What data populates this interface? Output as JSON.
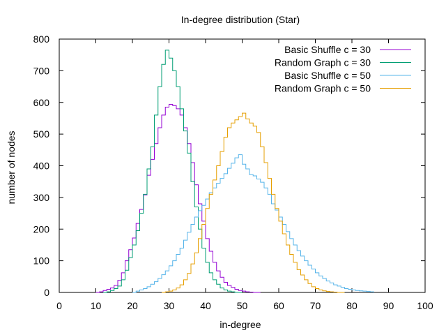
{
  "chart_data": {
    "type": "line",
    "title": "In-degree distribution (Star)",
    "xlabel": "in-degree",
    "ylabel": "number of nodes",
    "xlim": [
      0,
      100
    ],
    "ylim": [
      0,
      800
    ],
    "xticks": [
      "0",
      "10",
      "20",
      "30",
      "40",
      "50",
      "60",
      "70",
      "80",
      "90",
      "100"
    ],
    "yticks": [
      "0",
      "100",
      "200",
      "300",
      "400",
      "500",
      "600",
      "700",
      "800"
    ],
    "grid": false,
    "legend_position": "top-right",
    "step": true,
    "series": [
      {
        "name": "Basic Shuffle c = 30",
        "color": "#9400d3",
        "points": [
          [
            10,
            0
          ],
          [
            11,
            2
          ],
          [
            12,
            6
          ],
          [
            13,
            10
          ],
          [
            14,
            14
          ],
          [
            15,
            22
          ],
          [
            16,
            38
          ],
          [
            17,
            62
          ],
          [
            18,
            100
          ],
          [
            19,
            135
          ],
          [
            20,
            172
          ],
          [
            21,
            218
          ],
          [
            22,
            262
          ],
          [
            23,
            308
          ],
          [
            24,
            370
          ],
          [
            25,
            420
          ],
          [
            26,
            470
          ],
          [
            27,
            520
          ],
          [
            28,
            560
          ],
          [
            29,
            585
          ],
          [
            30,
            594
          ],
          [
            31,
            590
          ],
          [
            32,
            580
          ],
          [
            33,
            560
          ],
          [
            34,
            520
          ],
          [
            35,
            470
          ],
          [
            36,
            410
          ],
          [
            37,
            340
          ],
          [
            38,
            280
          ],
          [
            39,
            225
          ],
          [
            40,
            170
          ],
          [
            41,
            130
          ],
          [
            42,
            95
          ],
          [
            43,
            68
          ],
          [
            44,
            48
          ],
          [
            45,
            32
          ],
          [
            46,
            22
          ],
          [
            47,
            16
          ],
          [
            48,
            10
          ],
          [
            49,
            6
          ],
          [
            50,
            4
          ],
          [
            51,
            2
          ],
          [
            52,
            1
          ],
          [
            53,
            0
          ],
          [
            55,
            0
          ]
        ]
      },
      {
        "name": "Random Graph c = 30",
        "color": "#009e73",
        "points": [
          [
            12,
            0
          ],
          [
            13,
            2
          ],
          [
            14,
            6
          ],
          [
            15,
            12
          ],
          [
            16,
            20
          ],
          [
            17,
            40
          ],
          [
            18,
            70
          ],
          [
            19,
            110
          ],
          [
            20,
            150
          ],
          [
            21,
            195
          ],
          [
            22,
            250
          ],
          [
            23,
            310
          ],
          [
            24,
            390
          ],
          [
            25,
            460
          ],
          [
            26,
            560
          ],
          [
            27,
            650
          ],
          [
            28,
            720
          ],
          [
            29,
            765
          ],
          [
            30,
            740
          ],
          [
            31,
            700
          ],
          [
            32,
            650
          ],
          [
            33,
            580
          ],
          [
            34,
            510
          ],
          [
            35,
            440
          ],
          [
            36,
            350
          ],
          [
            37,
            270
          ],
          [
            38,
            200
          ],
          [
            39,
            140
          ],
          [
            40,
            95
          ],
          [
            41,
            62
          ],
          [
            42,
            40
          ],
          [
            43,
            26
          ],
          [
            44,
            14
          ],
          [
            45,
            8
          ],
          [
            46,
            4
          ],
          [
            47,
            2
          ],
          [
            48,
            0
          ],
          [
            50,
            0
          ]
        ]
      },
      {
        "name": "Basic Shuffle c = 50",
        "color": "#56b4e9",
        "points": [
          [
            20,
            0
          ],
          [
            21,
            4
          ],
          [
            22,
            8
          ],
          [
            23,
            12
          ],
          [
            24,
            18
          ],
          [
            25,
            26
          ],
          [
            26,
            34
          ],
          [
            27,
            44
          ],
          [
            28,
            56
          ],
          [
            29,
            68
          ],
          [
            30,
            84
          ],
          [
            31,
            100
          ],
          [
            32,
            120
          ],
          [
            33,
            140
          ],
          [
            34,
            165
          ],
          [
            35,
            190
          ],
          [
            36,
            215
          ],
          [
            37,
            238
          ],
          [
            38,
            258
          ],
          [
            39,
            275
          ],
          [
            40,
            295
          ],
          [
            41,
            315
          ],
          [
            42,
            330
          ],
          [
            43,
            345
          ],
          [
            44,
            360
          ],
          [
            45,
            375
          ],
          [
            46,
            392
          ],
          [
            47,
            408
          ],
          [
            48,
            425
          ],
          [
            49,
            435
          ],
          [
            50,
            405
          ],
          [
            51,
            390
          ],
          [
            52,
            372
          ],
          [
            53,
            368
          ],
          [
            54,
            358
          ],
          [
            55,
            348
          ],
          [
            56,
            330
          ],
          [
            57,
            310
          ],
          [
            58,
            280
          ],
          [
            59,
            260
          ],
          [
            60,
            238
          ],
          [
            61,
            215
          ],
          [
            62,
            192
          ],
          [
            63,
            170
          ],
          [
            64,
            150
          ],
          [
            65,
            132
          ],
          [
            66,
            115
          ],
          [
            67,
            100
          ],
          [
            68,
            86
          ],
          [
            69,
            74
          ],
          [
            70,
            62
          ],
          [
            71,
            52
          ],
          [
            72,
            44
          ],
          [
            73,
            36
          ],
          [
            74,
            30
          ],
          [
            75,
            24
          ],
          [
            76,
            20
          ],
          [
            77,
            16
          ],
          [
            78,
            12
          ],
          [
            79,
            10
          ],
          [
            80,
            8
          ],
          [
            81,
            6
          ],
          [
            82,
            5
          ],
          [
            83,
            4
          ],
          [
            84,
            3
          ],
          [
            85,
            2
          ],
          [
            86,
            0
          ]
        ]
      },
      {
        "name": "Random Graph c = 50",
        "color": "#e69f00",
        "points": [
          [
            28,
            0
          ],
          [
            29,
            2
          ],
          [
            30,
            4
          ],
          [
            31,
            8
          ],
          [
            32,
            14
          ],
          [
            33,
            24
          ],
          [
            34,
            40
          ],
          [
            35,
            60
          ],
          [
            36,
            90
          ],
          [
            37,
            125
          ],
          [
            38,
            170
          ],
          [
            39,
            215
          ],
          [
            40,
            265
          ],
          [
            41,
            310
          ],
          [
            42,
            355
          ],
          [
            43,
            400
          ],
          [
            44,
            445
          ],
          [
            45,
            490
          ],
          [
            46,
            520
          ],
          [
            47,
            535
          ],
          [
            48,
            545
          ],
          [
            49,
            555
          ],
          [
            50,
            566
          ],
          [
            51,
            548
          ],
          [
            52,
            535
          ],
          [
            53,
            525
          ],
          [
            54,
            505
          ],
          [
            55,
            460
          ],
          [
            56,
            410
          ],
          [
            57,
            360
          ],
          [
            58,
            310
          ],
          [
            59,
            265
          ],
          [
            60,
            225
          ],
          [
            61,
            185
          ],
          [
            62,
            150
          ],
          [
            63,
            120
          ],
          [
            64,
            95
          ],
          [
            65,
            72
          ],
          [
            66,
            55
          ],
          [
            67,
            40
          ],
          [
            68,
            28
          ],
          [
            69,
            18
          ],
          [
            70,
            12
          ],
          [
            71,
            8
          ],
          [
            72,
            5
          ],
          [
            73,
            3
          ],
          [
            74,
            2
          ],
          [
            75,
            1
          ],
          [
            76,
            0
          ],
          [
            78,
            0
          ]
        ]
      }
    ]
  }
}
